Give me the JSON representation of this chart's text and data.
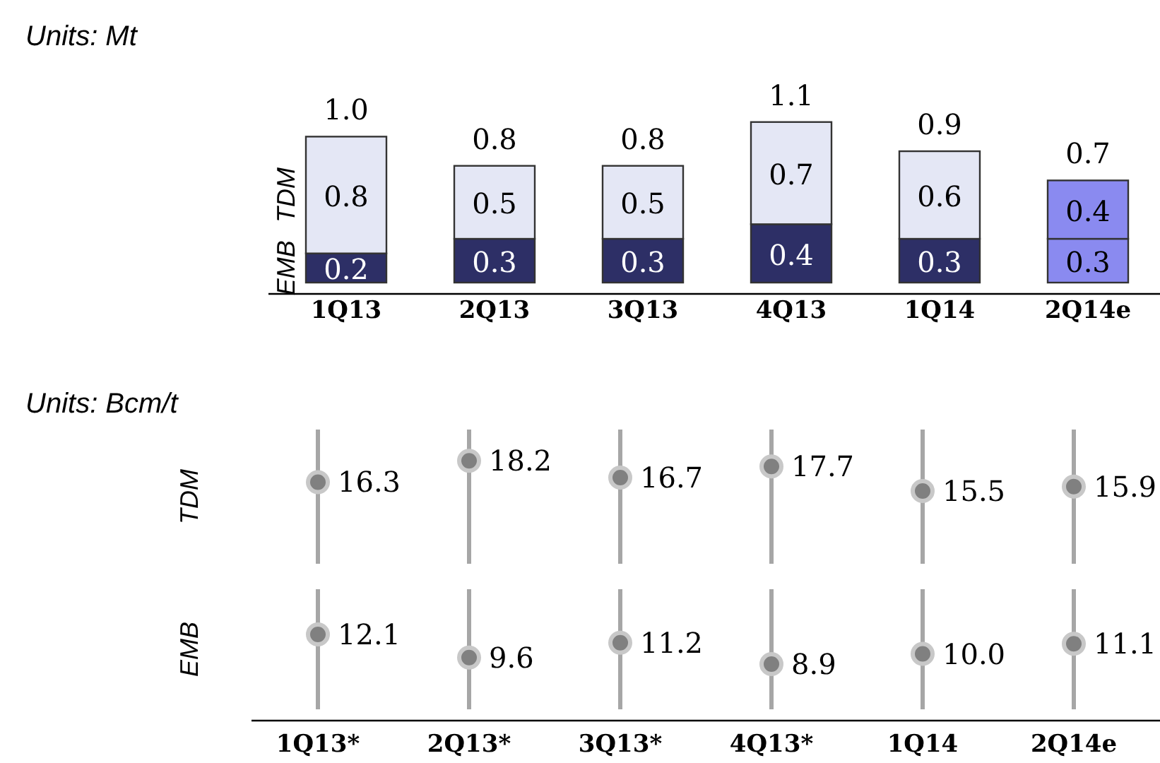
{
  "chart_data": [
    {
      "type": "bar",
      "title": "Units: Mt",
      "stacked": true,
      "data_labels": true,
      "categories": [
        "1Q13",
        "2Q13",
        "3Q13",
        "4Q13",
        "1Q14",
        "2Q14e"
      ],
      "series": [
        {
          "name": "EMB",
          "colors": [
            "#2d2f66",
            "#2d2f66",
            "#2d2f66",
            "#2d2f66",
            "#2d2f66",
            "#8a8af0"
          ],
          "values": [
            0.2,
            0.3,
            0.3,
            0.4,
            0.3,
            0.3
          ]
        },
        {
          "name": "TDM",
          "colors": [
            "#e4e7f5",
            "#e4e7f5",
            "#e4e7f5",
            "#e4e7f5",
            "#e4e7f5",
            "#8a8af0"
          ],
          "values": [
            0.8,
            0.5,
            0.5,
            0.7,
            0.6,
            0.4
          ]
        }
      ],
      "totals": [
        "1.0",
        "0.8",
        "0.8",
        "1.1",
        "0.9",
        "0.7"
      ],
      "tick_labels": "x"
    },
    {
      "type": "scatter",
      "title": "Units: Bcm/t",
      "ylabel": "TDM",
      "series": [
        {
          "color": "#808080",
          "values": [
            16.3,
            18.2,
            16.7,
            17.7,
            15.5,
            15.9
          ]
        }
      ],
      "data_labels": true,
      "marker": "circle",
      "grid": "x",
      "ylim": [
        9,
        21
      ],
      "tick_labels": false
    },
    {
      "type": "scatter",
      "ylabel": "EMB",
      "categories": [
        "1Q13*",
        "2Q13*",
        "3Q13*",
        "4Q13*",
        "1Q14",
        "2Q14e"
      ],
      "series": [
        {
          "color": "#808080",
          "values": [
            12.1,
            9.6,
            11.2,
            8.9,
            10.0,
            11.1
          ],
          "value_labels": [
            "12.1",
            "9.6",
            "11.2",
            "8.9",
            "10.0",
            "11.1"
          ]
        }
      ],
      "marker": "circle",
      "grid": "x",
      "ylim": [
        4,
        17
      ],
      "tick_labels": "x"
    }
  ]
}
